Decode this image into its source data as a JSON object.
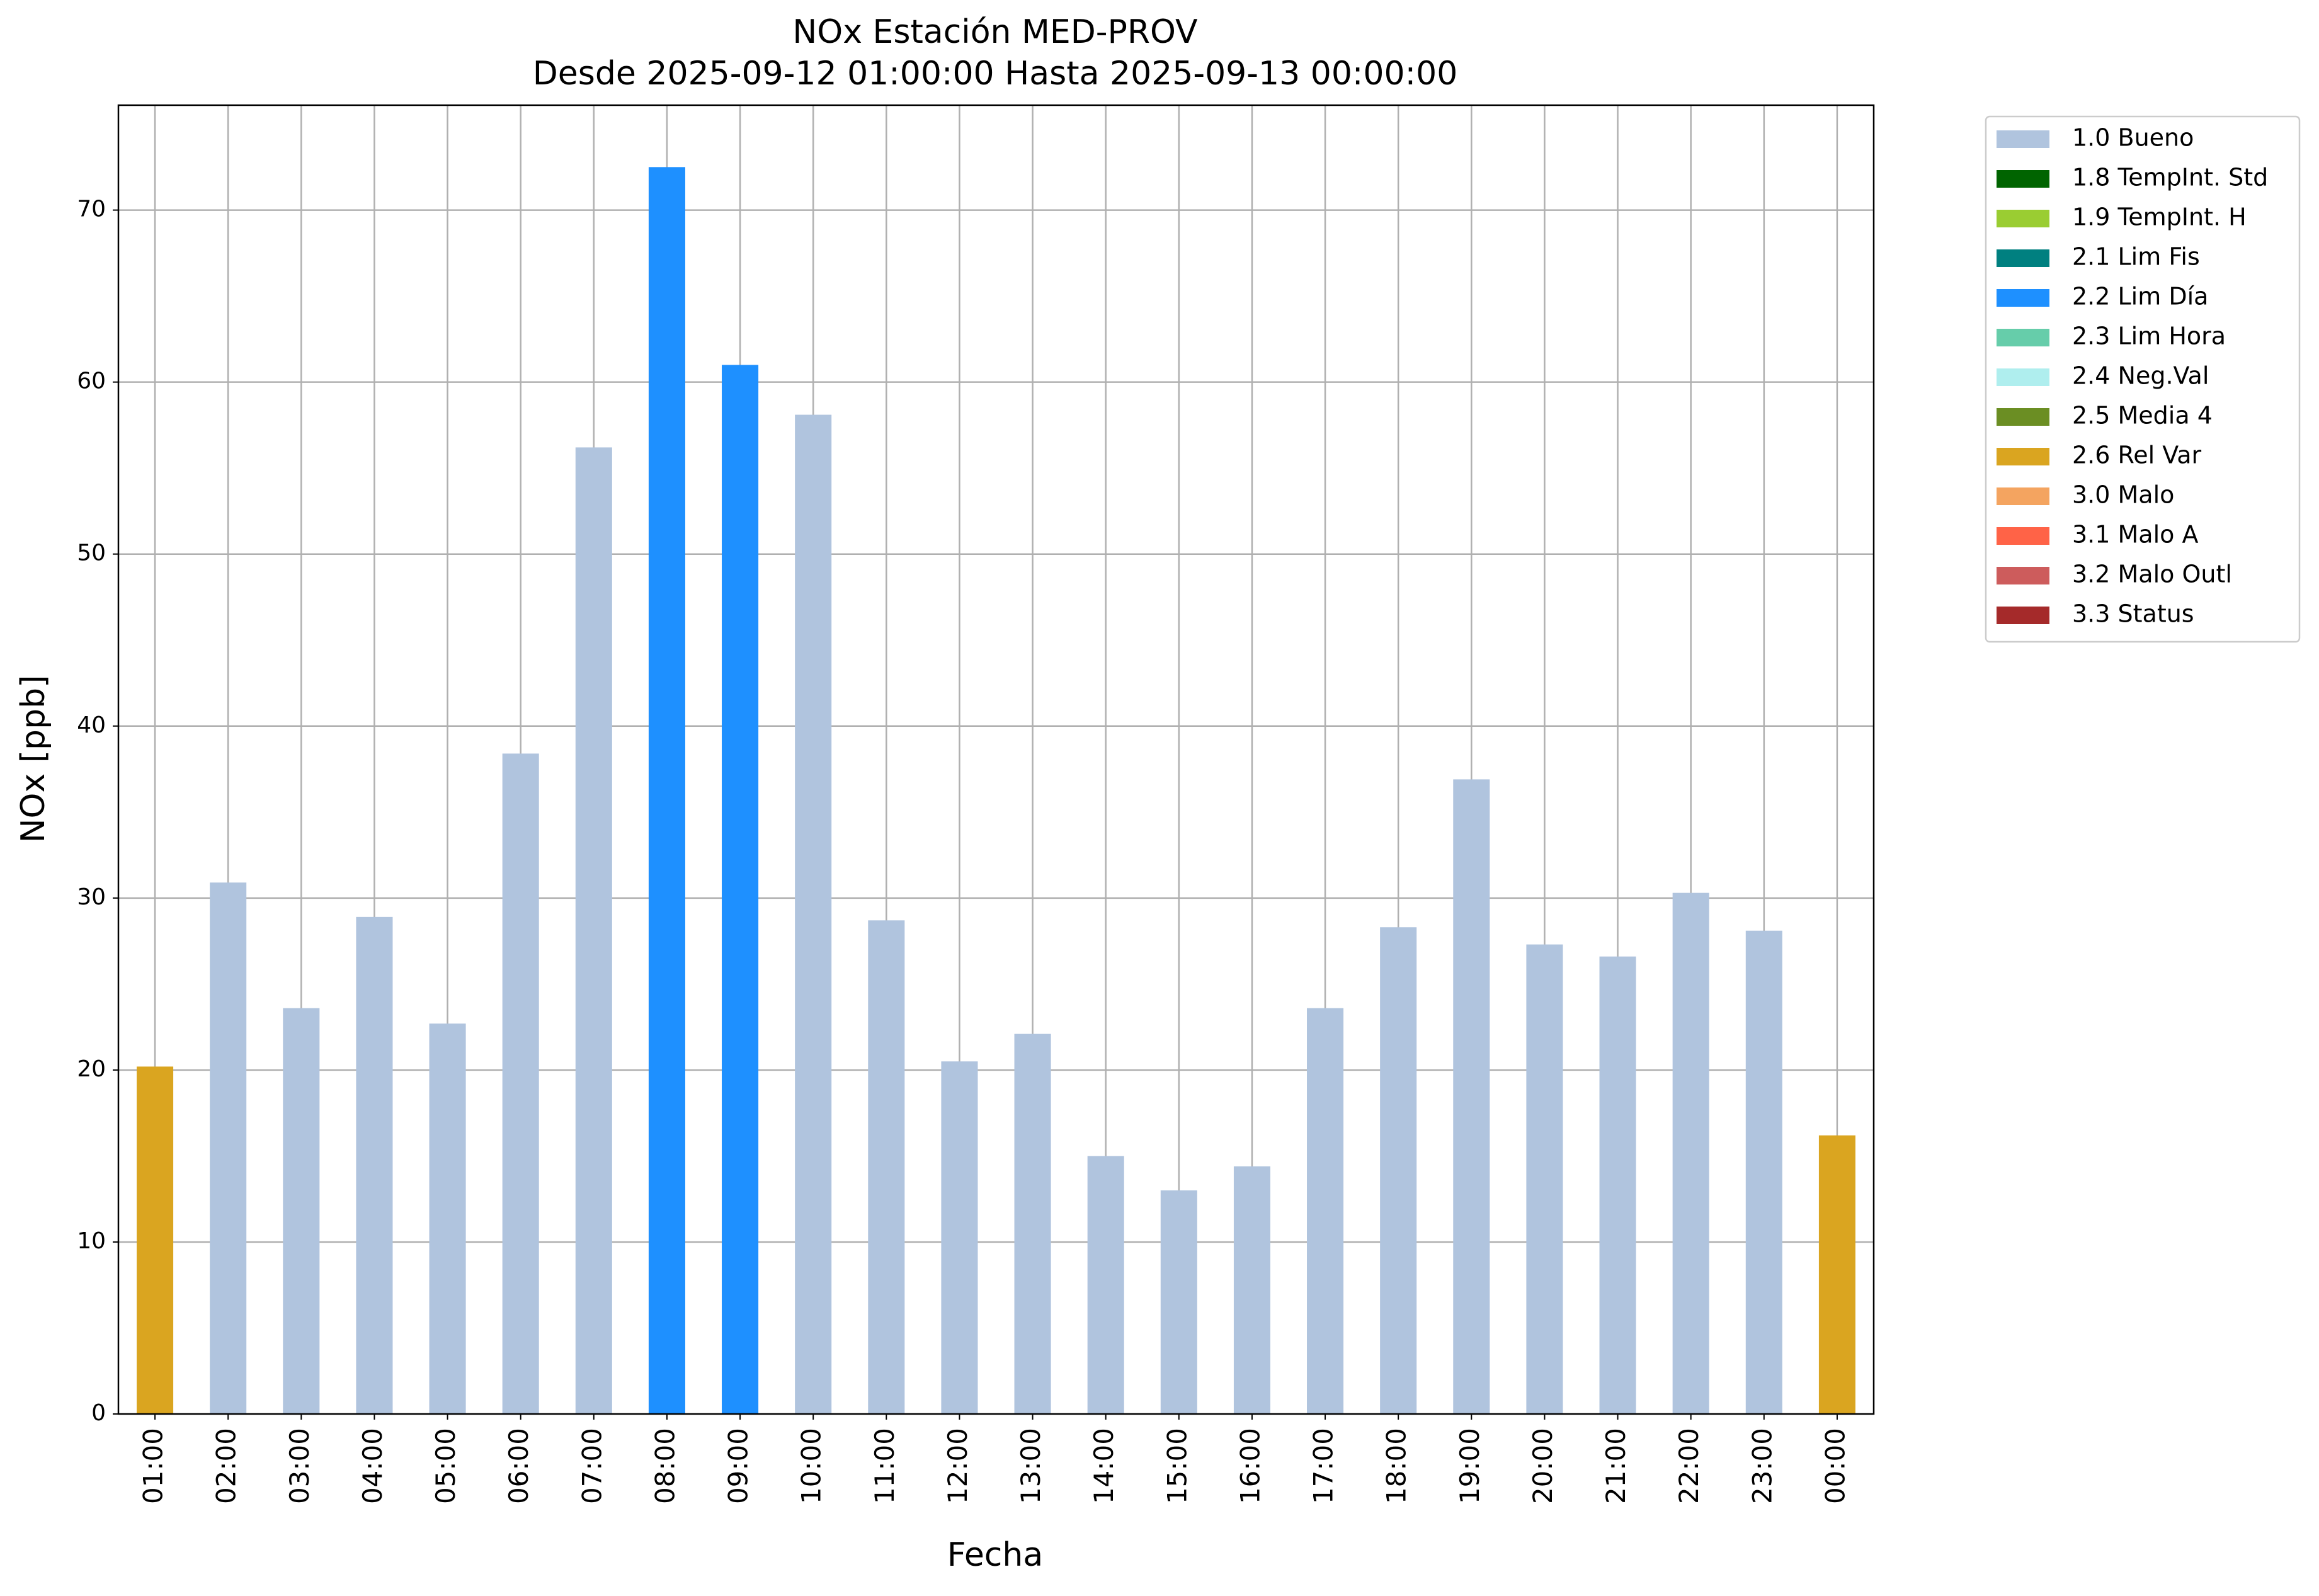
{
  "chart_data": {
    "type": "bar",
    "title": "NOx Estación MED-PROV",
    "subtitle": "Desde 2025-09-12 01:00:00 Hasta 2025-09-13 00:00:00",
    "x_label": "Fecha",
    "y_label": "NOx [ppb]",
    "categories": [
      "01:00",
      "02:00",
      "03:00",
      "04:00",
      "05:00",
      "06:00",
      "07:00",
      "08:00",
      "09:00",
      "10:00",
      "11:00",
      "12:00",
      "13:00",
      "14:00",
      "15:00",
      "16:00",
      "17:00",
      "18:00",
      "19:00",
      "20:00",
      "21:00",
      "22:00",
      "23:00",
      "00:00"
    ],
    "series": [
      {
        "name": "1.0 Bueno",
        "color": "#b0c4de",
        "values": [
          null,
          30.9,
          23.6,
          28.9,
          22.7,
          38.4,
          56.2,
          null,
          null,
          58.1,
          28.7,
          20.5,
          22.1,
          15.0,
          13.0,
          14.4,
          23.6,
          28.3,
          36.9,
          27.3,
          26.6,
          30.3,
          28.1,
          null
        ]
      },
      {
        "name": "1.8 TempInt. Std",
        "color": "#006400",
        "values": [
          null,
          null,
          null,
          null,
          null,
          null,
          null,
          null,
          null,
          null,
          null,
          null,
          null,
          null,
          null,
          null,
          null,
          null,
          null,
          null,
          null,
          null,
          null,
          null
        ]
      },
      {
        "name": "1.9 TempInt. H",
        "color": "#9acd32",
        "values": [
          null,
          null,
          null,
          null,
          null,
          null,
          null,
          null,
          null,
          null,
          null,
          null,
          null,
          null,
          null,
          null,
          null,
          null,
          null,
          null,
          null,
          null,
          null,
          null
        ]
      },
      {
        "name": "2.1 Lim Fis",
        "color": "#008080",
        "values": [
          null,
          null,
          null,
          null,
          null,
          null,
          null,
          null,
          null,
          null,
          null,
          null,
          null,
          null,
          null,
          null,
          null,
          null,
          null,
          null,
          null,
          null,
          null,
          null
        ]
      },
      {
        "name": "2.2 Lim Día",
        "color": "#1e90ff",
        "values": [
          null,
          null,
          null,
          null,
          null,
          null,
          null,
          72.5,
          61.0,
          null,
          null,
          null,
          null,
          null,
          null,
          null,
          null,
          null,
          null,
          null,
          null,
          null,
          null,
          null
        ]
      },
      {
        "name": "2.3 Lim Hora",
        "color": "#66cdaa",
        "values": [
          null,
          null,
          null,
          null,
          null,
          null,
          null,
          null,
          null,
          null,
          null,
          null,
          null,
          null,
          null,
          null,
          null,
          null,
          null,
          null,
          null,
          null,
          null,
          null
        ]
      },
      {
        "name": "2.4 Neg.Val",
        "color": "#afeeee",
        "values": [
          null,
          null,
          null,
          null,
          null,
          null,
          null,
          null,
          null,
          null,
          null,
          null,
          null,
          null,
          null,
          null,
          null,
          null,
          null,
          null,
          null,
          null,
          null,
          null
        ]
      },
      {
        "name": "2.5 Media 4",
        "color": "#6b8e23",
        "values": [
          null,
          null,
          null,
          null,
          null,
          null,
          null,
          null,
          null,
          null,
          null,
          null,
          null,
          null,
          null,
          null,
          null,
          null,
          null,
          null,
          null,
          null,
          null,
          null
        ]
      },
      {
        "name": "2.6 Rel Var",
        "color": "#daa520",
        "values": [
          20.2,
          null,
          null,
          null,
          null,
          null,
          null,
          null,
          null,
          null,
          null,
          null,
          null,
          null,
          null,
          null,
          null,
          null,
          null,
          null,
          null,
          null,
          null,
          16.2
        ]
      },
      {
        "name": "3.0 Malo",
        "color": "#f4a460",
        "values": [
          null,
          null,
          null,
          null,
          null,
          null,
          null,
          null,
          null,
          null,
          null,
          null,
          null,
          null,
          null,
          null,
          null,
          null,
          null,
          null,
          null,
          null,
          null,
          null
        ]
      },
      {
        "name": "3.1 Malo A",
        "color": "#ff6347",
        "values": [
          null,
          null,
          null,
          null,
          null,
          null,
          null,
          null,
          null,
          null,
          null,
          null,
          null,
          null,
          null,
          null,
          null,
          null,
          null,
          null,
          null,
          null,
          null,
          null
        ]
      },
      {
        "name": "3.2 Malo Outl",
        "color": "#cd5c5c",
        "values": [
          null,
          null,
          null,
          null,
          null,
          null,
          null,
          null,
          null,
          null,
          null,
          null,
          null,
          null,
          null,
          null,
          null,
          null,
          null,
          null,
          null,
          null,
          null,
          null
        ]
      },
      {
        "name": "3.3 Status",
        "color": "#a52a2a",
        "values": [
          null,
          null,
          null,
          null,
          null,
          null,
          null,
          null,
          null,
          null,
          null,
          null,
          null,
          null,
          null,
          null,
          null,
          null,
          null,
          null,
          null,
          null,
          null,
          null
        ]
      }
    ],
    "ylim": [
      0,
      76.1
    ],
    "yticks": [
      0,
      10,
      20,
      30,
      40,
      50,
      60,
      70
    ],
    "grid": true,
    "legend": "outside-right"
  }
}
